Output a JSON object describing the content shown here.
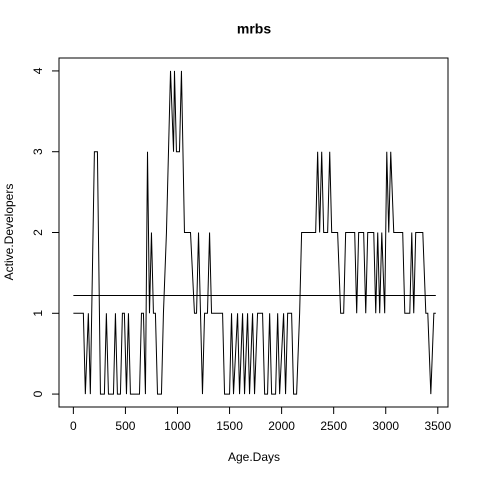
{
  "chart_data": {
    "type": "line",
    "title": "mrbs",
    "xlabel": "Age.Days",
    "ylabel": "Active.Developers",
    "xlim": [
      -138,
      3598
    ],
    "ylim": [
      -0.16,
      4.16
    ],
    "xticks": [
      0,
      500,
      1000,
      1500,
      2000,
      2500,
      3000,
      3500
    ],
    "yticks": [
      0,
      1,
      2,
      3,
      4
    ],
    "color": "#000000",
    "series": [
      {
        "x": [
          0,
          96,
          115,
          144,
          163,
          202,
          231,
          260,
          298,
          317,
          337,
          385,
          404,
          423,
          452,
          471,
          490,
          510,
          529,
          548,
          635,
          654,
          673,
          692,
          712,
          731,
          750,
          769,
          788,
          808,
          846,
          865,
          894,
          933,
          962,
          971,
          990,
          1019,
          1038,
          1067,
          1125,
          1163,
          1183,
          1202,
          1221,
          1240,
          1260,
          1288,
          1308,
          1327,
          1433,
          1452,
          1500,
          1519,
          1538,
          1577,
          1596,
          1625,
          1644,
          1673,
          1692,
          1721,
          1740,
          1769,
          1817,
          1837,
          1865,
          1885,
          1904,
          1942,
          1962,
          1981,
          2019,
          2038,
          2058,
          2096,
          2115,
          2144,
          2173,
          2192,
          2327,
          2346,
          2365,
          2385,
          2404,
          2442,
          2462,
          2481,
          2538,
          2567,
          2596,
          2615,
          2702,
          2721,
          2740,
          2788,
          2808,
          2827,
          2885,
          2904,
          2923,
          2942,
          2962,
          2990,
          3010,
          3029,
          3048,
          3077,
          3163,
          3183,
          3231,
          3250,
          3269,
          3288,
          3356,
          3385,
          3404,
          3433,
          3462,
          3481
        ],
        "values": [
          1,
          1,
          0,
          1,
          0,
          3,
          3,
          0,
          0,
          1,
          0,
          0,
          1,
          0,
          0,
          1,
          1,
          0,
          1,
          0,
          0,
          1,
          1,
          0,
          3,
          1,
          2,
          1,
          1,
          0,
          0,
          1,
          2,
          4,
          3,
          4,
          3,
          3,
          4,
          2,
          2,
          1,
          1,
          2,
          1,
          0,
          1,
          1,
          2,
          1,
          1,
          0,
          0,
          1,
          0,
          1,
          0,
          1,
          0,
          1,
          0,
          1,
          0,
          1,
          1,
          0,
          0,
          1,
          0,
          0,
          1,
          0,
          1,
          0,
          1,
          1,
          0,
          0,
          1,
          2,
          2,
          3,
          2,
          3,
          2,
          2,
          3,
          2,
          2,
          1,
          1,
          2,
          2,
          1,
          2,
          2,
          1,
          2,
          2,
          1,
          2,
          1,
          2,
          1,
          3,
          2,
          3,
          2,
          2,
          1,
          1,
          2,
          1,
          2,
          2,
          1,
          1,
          0,
          1,
          1
        ]
      },
      {
        "x": [
          0,
          3481
        ],
        "values": [
          1.22,
          1.22
        ]
      }
    ]
  }
}
